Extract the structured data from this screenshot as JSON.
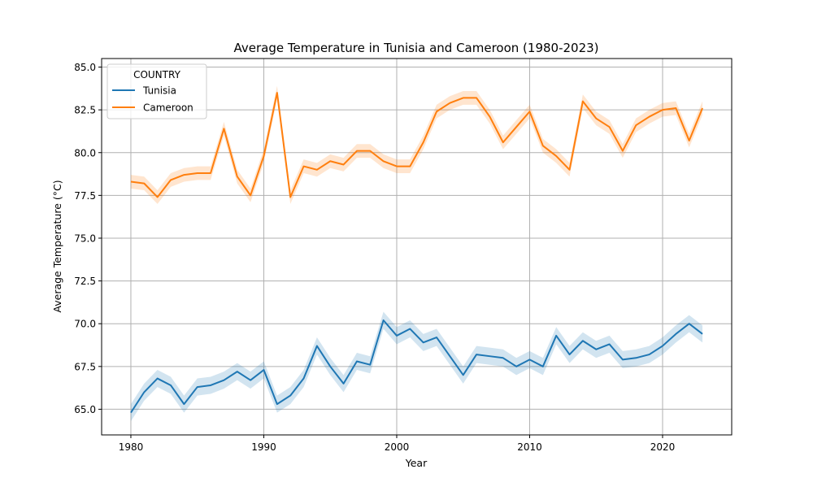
{
  "chart_data": {
    "type": "line",
    "title": "Average Temperature in Tunisia and Cameroon (1980-2023)",
    "xlabel": "Year",
    "ylabel": "Average Temperature (°C)",
    "xlim": [
      1977.8,
      2025.2
    ],
    "ylim": [
      63.5,
      85.5
    ],
    "xticks": [
      1980,
      1990,
      2000,
      2010,
      2020
    ],
    "yticks": [
      65.0,
      67.5,
      70.0,
      72.5,
      75.0,
      77.5,
      80.0,
      82.5,
      85.0
    ],
    "grid": true,
    "legend": {
      "title": "COUNTRY",
      "placement": "top-left"
    },
    "x": [
      1980,
      1981,
      1982,
      1983,
      1984,
      1985,
      1986,
      1987,
      1988,
      1989,
      1990,
      1991,
      1992,
      1993,
      1994,
      1995,
      1996,
      1997,
      1998,
      1999,
      2000,
      2001,
      2002,
      2003,
      2004,
      2005,
      2006,
      2007,
      2008,
      2009,
      2010,
      2011,
      2012,
      2013,
      2014,
      2015,
      2016,
      2017,
      2018,
      2019,
      2020,
      2021,
      2022,
      2023
    ],
    "series": [
      {
        "name": "Tunisia",
        "color": "#1f77b4",
        "values": [
          64.8,
          66.0,
          66.8,
          66.4,
          65.3,
          66.3,
          66.4,
          66.7,
          67.2,
          66.7,
          67.3,
          65.3,
          65.8,
          66.8,
          68.7,
          67.5,
          66.5,
          67.8,
          67.6,
          70.2,
          69.3,
          69.7,
          68.9,
          69.2,
          68.1,
          67.0,
          68.2,
          68.1,
          68.0,
          67.5,
          67.9,
          67.5,
          69.3,
          68.2,
          69.0,
          68.5,
          68.8,
          67.9,
          68.0,
          68.2,
          68.7,
          69.4,
          70.0,
          69.4
        ],
        "band": 0.5
      },
      {
        "name": "Cameroon",
        "color": "#ff7f0e",
        "values": [
          78.3,
          78.2,
          77.4,
          78.4,
          78.7,
          78.8,
          78.8,
          81.4,
          78.6,
          77.5,
          79.8,
          83.5,
          77.4,
          79.2,
          79.0,
          79.5,
          79.3,
          80.1,
          80.1,
          79.5,
          79.2,
          79.2,
          80.6,
          82.4,
          82.9,
          83.2,
          83.2,
          82.1,
          80.6,
          81.5,
          82.4,
          80.4,
          79.8,
          79.0,
          83.0,
          82.0,
          81.5,
          80.1,
          81.6,
          82.1,
          82.5,
          82.6,
          80.7,
          82.6
        ],
        "band": 0.4
      }
    ]
  }
}
